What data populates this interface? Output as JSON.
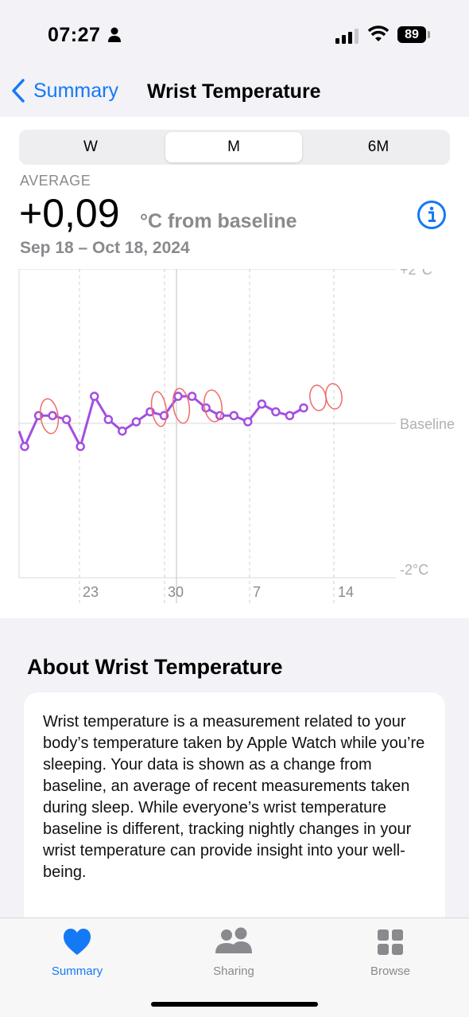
{
  "status": {
    "time": "07:27",
    "battery": "89"
  },
  "nav": {
    "back_label": "Summary",
    "title": "Wrist Temperature"
  },
  "segments": [
    "W",
    "M",
    "6M"
  ],
  "average": {
    "label": "AVERAGE",
    "value": "+0,09",
    "unit": "°C from baseline",
    "date_range": "Sep 18 – Oct 18, 2024"
  },
  "chart_data": {
    "type": "line",
    "y_labels": [
      "+2°C",
      "Baseline",
      "-2°C"
    ],
    "x_tick_labels": [
      "23",
      "30",
      "7",
      "14"
    ],
    "ylim": [
      -2,
      2
    ],
    "colors": {
      "line": "#a34ee0",
      "annotation": "#f06a6a",
      "grid": "#d9d9d9"
    },
    "series": [
      {
        "values": [
          -0.3,
          0.1,
          0.1,
          0.05,
          -0.3,
          0.35,
          0.05,
          -0.1,
          0.02,
          0.15,
          0.1,
          0.35,
          0.35,
          0.2,
          0.1,
          0.1,
          0.02,
          0.25,
          0.15,
          0.1,
          0.2
        ]
      }
    ]
  },
  "about": {
    "title": "About Wrist Temperature",
    "text": "Wrist temperature is a measurement related to your body’s temperature taken by Apple Watch while you’re sleeping. Your data is shown as a change from baseline, an average of recent measurements taken during sleep. While everyone’s wrist temperature baseline is different, tracking nightly changes in your wrist temperature can provide insight into your well-being."
  },
  "tabs": [
    {
      "label": "Summary",
      "icon": "heart-icon",
      "color": "#1479f5"
    },
    {
      "label": "Sharing",
      "icon": "people-icon",
      "color": "#8a8a8e"
    },
    {
      "label": "Browse",
      "icon": "grid-icon",
      "color": "#8a8a8e"
    }
  ]
}
